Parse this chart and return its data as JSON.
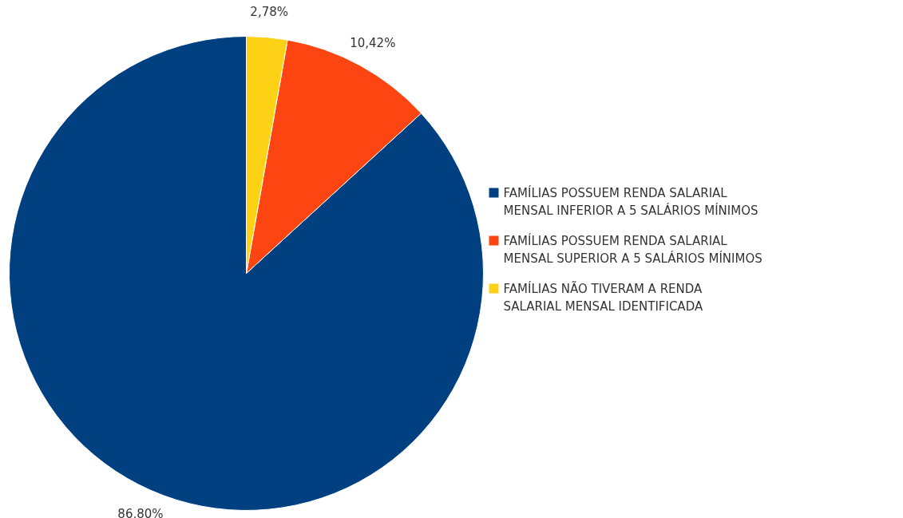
{
  "chart_data": {
    "type": "pie",
    "categories": [
      "FAMÍLIAS POSSUEM RENDA SALARIAL MENSAL INFERIOR A 5 SALÁRIOS MÍNIMOS",
      "FAMÍLIAS POSSUEM RENDA SALARIAL MENSAL SUPERIOR A 5 SALÁRIOS MÍNIMOS",
      "FAMÍLIAS NÃO TIVERAM A RENDA SALARIAL MENSAL IDENTIFICADA"
    ],
    "values": [
      86.8,
      10.42,
      2.78
    ],
    "colors": [
      "#004080",
      "#fc4510",
      "#fcd116"
    ],
    "value_labels": [
      "86,80%",
      "10,42%",
      "2,78%"
    ],
    "legend": "right"
  }
}
